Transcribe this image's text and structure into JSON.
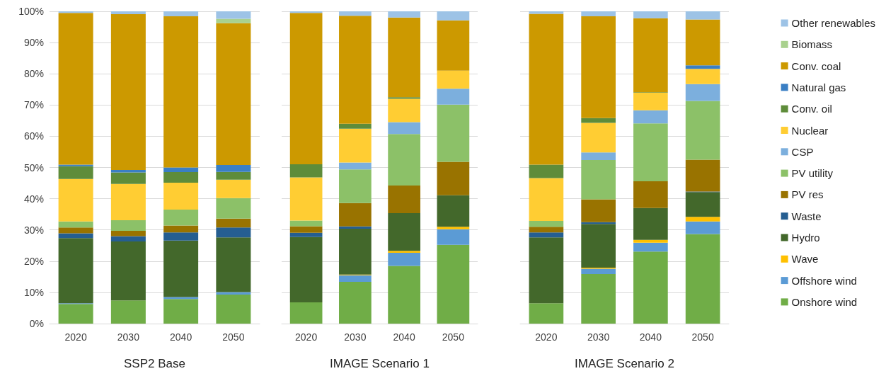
{
  "chart_data": [
    {
      "type": "bar",
      "stacked": true,
      "xlabel": "SSP2 Base",
      "categories": [
        "2020",
        "2030",
        "2040",
        "2050"
      ],
      "ylim": [
        0,
        100
      ],
      "yticks": [
        {
          "value": 0,
          "label": "0%"
        },
        {
          "value": 10,
          "label": "10%"
        },
        {
          "value": 20,
          "label": "20%"
        },
        {
          "value": 30,
          "label": "30%"
        },
        {
          "value": 40,
          "label": "40%"
        },
        {
          "value": 50,
          "label": "50%"
        },
        {
          "value": 60,
          "label": "60%"
        },
        {
          "value": 70,
          "label": "70%"
        },
        {
          "value": 80,
          "label": "80%"
        },
        {
          "value": 90,
          "label": "90%"
        },
        {
          "value": 100,
          "label": "100%"
        }
      ],
      "grid": "y",
      "series": [
        {
          "color": "#70ad47",
          "values": [
            6.3,
            7.4,
            7.9,
            9.3
          ]
        },
        {
          "color": "#5b9bd5",
          "values": [
            0.2,
            0,
            0.6,
            0.8
          ]
        },
        {
          "color": "#ffc000",
          "values": [
            0,
            0,
            0,
            0
          ]
        },
        {
          "color": "#43682b",
          "values": [
            20.9,
            18.9,
            18.1,
            17.5
          ]
        },
        {
          "color": "#255e91",
          "values": [
            1.5,
            1.7,
            2.6,
            3.2
          ]
        },
        {
          "color": "#997300",
          "values": [
            1.9,
            1.7,
            2.2,
            2.8
          ]
        },
        {
          "color": "#8cc168",
          "values": [
            1.9,
            3.4,
            5.1,
            6.6
          ]
        },
        {
          "color": "#7cafdd",
          "values": [
            0,
            0,
            0,
            0
          ]
        },
        {
          "color": "#ffcd33",
          "values": [
            13.6,
            11.6,
            8.6,
            5.9
          ]
        },
        {
          "color": "#5e8c3a",
          "values": [
            4.1,
            3.7,
            3.4,
            2.5
          ]
        },
        {
          "color": "#3a7fc4",
          "values": [
            0.5,
            0.8,
            1.5,
            2.2
          ]
        },
        {
          "color": "#cc9900",
          "values": [
            48.6,
            49.9,
            48.4,
            45.4
          ]
        },
        {
          "color": "#a9d18e",
          "values": [
            0,
            0,
            0,
            1.4
          ]
        },
        {
          "color": "#9dc3e6",
          "values": [
            0.5,
            0.9,
            1.6,
            2.4
          ]
        }
      ]
    },
    {
      "type": "bar",
      "stacked": true,
      "xlabel": "IMAGE Scenario 1",
      "categories": [
        "2020",
        "2030",
        "2040",
        "2050"
      ],
      "ylim": [
        0,
        100
      ],
      "yticks": [
        {
          "value": 0,
          "label": null
        },
        {
          "value": 10,
          "label": null
        },
        {
          "value": 20,
          "label": null
        },
        {
          "value": 30,
          "label": null
        },
        {
          "value": 40,
          "label": null
        },
        {
          "value": 50,
          "label": null
        },
        {
          "value": 60,
          "label": null
        },
        {
          "value": 70,
          "label": null
        },
        {
          "value": 80,
          "label": null
        },
        {
          "value": 90,
          "label": null
        },
        {
          "value": 100,
          "label": null
        }
      ],
      "grid": "y",
      "tick_labels": "x",
      "series": [
        {
          "color": "#70ad47",
          "values": [
            6.8,
            13.4,
            18.5,
            25.2
          ]
        },
        {
          "color": "#5b9bd5",
          "values": [
            0,
            2.1,
            4.2,
            5.0
          ]
        },
        {
          "color": "#ffc000",
          "values": [
            0,
            0.2,
            0.6,
            0.8
          ]
        },
        {
          "color": "#43682b",
          "values": [
            20.9,
            14.7,
            12.1,
            10.1
          ]
        },
        {
          "color": "#255e91",
          "values": [
            1.4,
            0.7,
            0,
            0
          ]
        },
        {
          "color": "#997300",
          "values": [
            2.1,
            7.5,
            8.8,
            10.7
          ]
        },
        {
          "color": "#8cc168",
          "values": [
            1.8,
            10.8,
            16.5,
            18.3
          ]
        },
        {
          "color": "#7cafdd",
          "values": [
            0,
            2.2,
            3.8,
            5.1
          ]
        },
        {
          "color": "#ffcd33",
          "values": [
            13.8,
            10.8,
            7.5,
            5.8
          ]
        },
        {
          "color": "#5e8c3a",
          "values": [
            4.2,
            1.6,
            0.5,
            0
          ]
        },
        {
          "color": "#3a7fc4",
          "values": [
            0,
            0,
            0,
            0
          ]
        },
        {
          "color": "#cc9900",
          "values": [
            48.5,
            34.6,
            25.5,
            16.1
          ]
        },
        {
          "color": "#a9d18e",
          "values": [
            0,
            0,
            0,
            0
          ]
        },
        {
          "color": "#9dc3e6",
          "values": [
            0.5,
            1.4,
            2.0,
            2.9
          ]
        }
      ]
    },
    {
      "type": "bar",
      "stacked": true,
      "xlabel": "IMAGE Scenario 2",
      "categories": [
        "2020",
        "2030",
        "2040",
        "2050"
      ],
      "ylim": [
        0,
        100
      ],
      "yticks": [
        {
          "value": 0,
          "label": null
        },
        {
          "value": 10,
          "label": null
        },
        {
          "value": 20,
          "label": null
        },
        {
          "value": 30,
          "label": null
        },
        {
          "value": 40,
          "label": null
        },
        {
          "value": 50,
          "label": null
        },
        {
          "value": 60,
          "label": null
        },
        {
          "value": 70,
          "label": null
        },
        {
          "value": 80,
          "label": null
        },
        {
          "value": 90,
          "label": null
        },
        {
          "value": 100,
          "label": null
        }
      ],
      "grid": "y",
      "tick_labels": "x",
      "legend": "right",
      "series": [
        {
          "name": "Onshore wind",
          "color": "#70ad47",
          "values": [
            6.5,
            15.9,
            23.1,
            28.7
          ]
        },
        {
          "name": "Offshore wind",
          "color": "#5b9bd5",
          "values": [
            0,
            1.7,
            2.8,
            4.0
          ]
        },
        {
          "name": "Wave",
          "color": "#ffc000",
          "values": [
            0,
            0.3,
            0.9,
            1.5
          ]
        },
        {
          "name": "Hydro",
          "color": "#43682b",
          "values": [
            21.1,
            14.0,
            10.2,
            7.9
          ]
        },
        {
          "name": "Waste",
          "color": "#255e91",
          "values": [
            1.6,
            0.6,
            0,
            0.2
          ]
        },
        {
          "name": "PV res",
          "color": "#997300",
          "values": [
            1.8,
            7.3,
            8.6,
            10.2
          ]
        },
        {
          "name": "PV utility",
          "color": "#8cc168",
          "values": [
            1.9,
            12.6,
            18.5,
            18.8
          ]
        },
        {
          "name": "CSP",
          "color": "#7cafdd",
          "values": [
            0,
            2.4,
            4.2,
            5.4
          ]
        },
        {
          "name": "Nuclear",
          "color": "#ffcd33",
          "values": [
            13.7,
            9.5,
            5.6,
            4.9
          ]
        },
        {
          "name": "Conv. oil",
          "color": "#5e8c3a",
          "values": [
            4.3,
            1.5,
            0.2,
            0
          ]
        },
        {
          "name": "Natural gas",
          "color": "#3a7fc4",
          "values": [
            0,
            0,
            0,
            1.1
          ]
        },
        {
          "name": "Conv. coal",
          "color": "#cc9900",
          "values": [
            48.3,
            32.6,
            23.7,
            14.7
          ]
        },
        {
          "name": "Biomass",
          "color": "#a9d18e",
          "values": [
            0,
            0,
            0,
            0
          ]
        },
        {
          "name": "Other renewables",
          "color": "#9dc3e6",
          "values": [
            0.8,
            1.6,
            2.2,
            2.6
          ]
        }
      ]
    }
  ]
}
